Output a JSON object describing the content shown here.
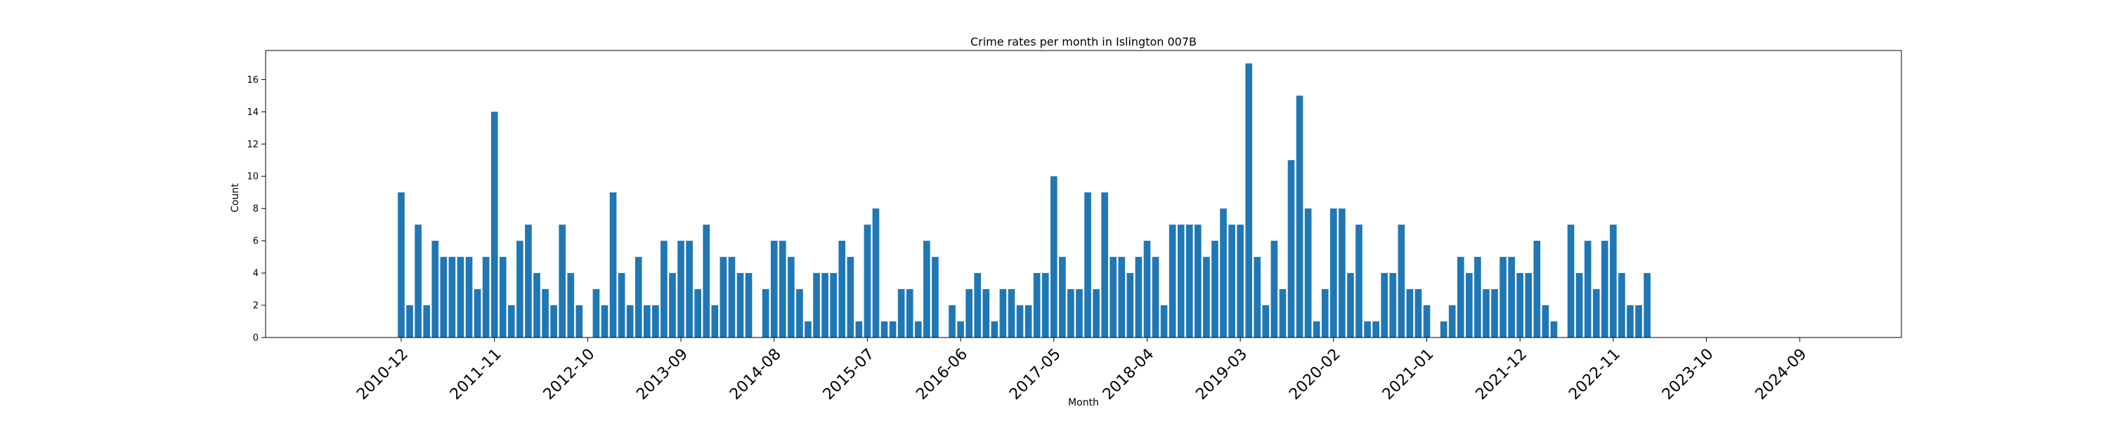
{
  "chart_data": {
    "type": "bar",
    "title": "Crime rates per month in Islington 007B",
    "xlabel": "Month",
    "ylabel": "Count",
    "ylim": [
      0,
      17.8
    ],
    "xlim": [
      "2009-08",
      "2025-09"
    ],
    "grid": false,
    "bar_color": "#1f77b4",
    "x_ticks": [
      "2010-12",
      "2011-11",
      "2012-10",
      "2013-09",
      "2014-08",
      "2015-07",
      "2016-06",
      "2017-05",
      "2018-04",
      "2019-03",
      "2020-02",
      "2021-01",
      "2021-12",
      "2022-11",
      "2023-10",
      "2024-09"
    ],
    "y_ticks": [
      0,
      2,
      4,
      6,
      8,
      10,
      12,
      14,
      16
    ],
    "categories": [
      "2010-12",
      "2011-01",
      "2011-02",
      "2011-03",
      "2011-04",
      "2011-05",
      "2011-06",
      "2011-07",
      "2011-08",
      "2011-09",
      "2011-10",
      "2011-11",
      "2011-12",
      "2012-01",
      "2012-02",
      "2012-03",
      "2012-04",
      "2012-05",
      "2012-06",
      "2012-07",
      "2012-08",
      "2012-09",
      "2012-10",
      "2012-11",
      "2012-12",
      "2013-01",
      "2013-02",
      "2013-03",
      "2013-04",
      "2013-05",
      "2013-06",
      "2013-07",
      "2013-08",
      "2013-09",
      "2013-10",
      "2013-11",
      "2013-12",
      "2014-01",
      "2014-02",
      "2014-03",
      "2014-04",
      "2014-05",
      "2014-06",
      "2014-07",
      "2014-08",
      "2014-09",
      "2014-10",
      "2014-11",
      "2014-12",
      "2015-01",
      "2015-02",
      "2015-03",
      "2015-04",
      "2015-05",
      "2015-06",
      "2015-07",
      "2015-08",
      "2015-09",
      "2015-10",
      "2015-11",
      "2015-12",
      "2016-01",
      "2016-02",
      "2016-03",
      "2016-04",
      "2016-05",
      "2016-06",
      "2016-07",
      "2016-08",
      "2016-09",
      "2016-10",
      "2016-11",
      "2016-12",
      "2017-01",
      "2017-02",
      "2017-03",
      "2017-04",
      "2017-05",
      "2017-06",
      "2017-07",
      "2017-08",
      "2017-09",
      "2017-10",
      "2017-11",
      "2017-12",
      "2018-01",
      "2018-02",
      "2018-03",
      "2018-04",
      "2018-05",
      "2018-06",
      "2018-07",
      "2018-08",
      "2018-09",
      "2018-10",
      "2018-11",
      "2018-12",
      "2019-01",
      "2019-02",
      "2019-03",
      "2019-04",
      "2019-05",
      "2019-06",
      "2019-07",
      "2019-08",
      "2019-09",
      "2019-10",
      "2019-11",
      "2019-12",
      "2020-01",
      "2020-02",
      "2020-03",
      "2020-04",
      "2020-05",
      "2020-06",
      "2020-07",
      "2020-08",
      "2020-09",
      "2020-10",
      "2020-11",
      "2020-12",
      "2021-01",
      "2021-02",
      "2021-03",
      "2021-04",
      "2021-05",
      "2021-06",
      "2021-07",
      "2021-08",
      "2021-09",
      "2021-10",
      "2021-11",
      "2021-12",
      "2022-01",
      "2022-02",
      "2022-03",
      "2022-04",
      "2022-05",
      "2022-06",
      "2022-07",
      "2022-08",
      "2022-09",
      "2022-10",
      "2022-11",
      "2022-12",
      "2023-01",
      "2023-02",
      "2023-03"
    ],
    "values": [
      9,
      2,
      7,
      2,
      6,
      5,
      5,
      5,
      5,
      3,
      5,
      14,
      5,
      2,
      6,
      7,
      4,
      3,
      2,
      7,
      4,
      2,
      0,
      3,
      2,
      9,
      4,
      2,
      5,
      2,
      2,
      6,
      4,
      6,
      6,
      3,
      7,
      2,
      5,
      5,
      4,
      4,
      0,
      3,
      6,
      6,
      5,
      3,
      1,
      4,
      4,
      4,
      6,
      5,
      1,
      7,
      8,
      1,
      1,
      3,
      3,
      1,
      6,
      5,
      0,
      2,
      1,
      3,
      4,
      3,
      1,
      3,
      3,
      2,
      2,
      4,
      4,
      10,
      5,
      3,
      3,
      9,
      3,
      9,
      5,
      5,
      4,
      5,
      6,
      5,
      2,
      7,
      7,
      7,
      7,
      5,
      6,
      8,
      7,
      7,
      17,
      5,
      2,
      6,
      3,
      11,
      15,
      8,
      1,
      3,
      8,
      8,
      4,
      7,
      1,
      1,
      4,
      4,
      7,
      3,
      3,
      2,
      0,
      1,
      2,
      5,
      4,
      5,
      3,
      3,
      5,
      5,
      4,
      4,
      6,
      2,
      1,
      0,
      7,
      4,
      6,
      3,
      6,
      7,
      4,
      2,
      2,
      4
    ]
  }
}
